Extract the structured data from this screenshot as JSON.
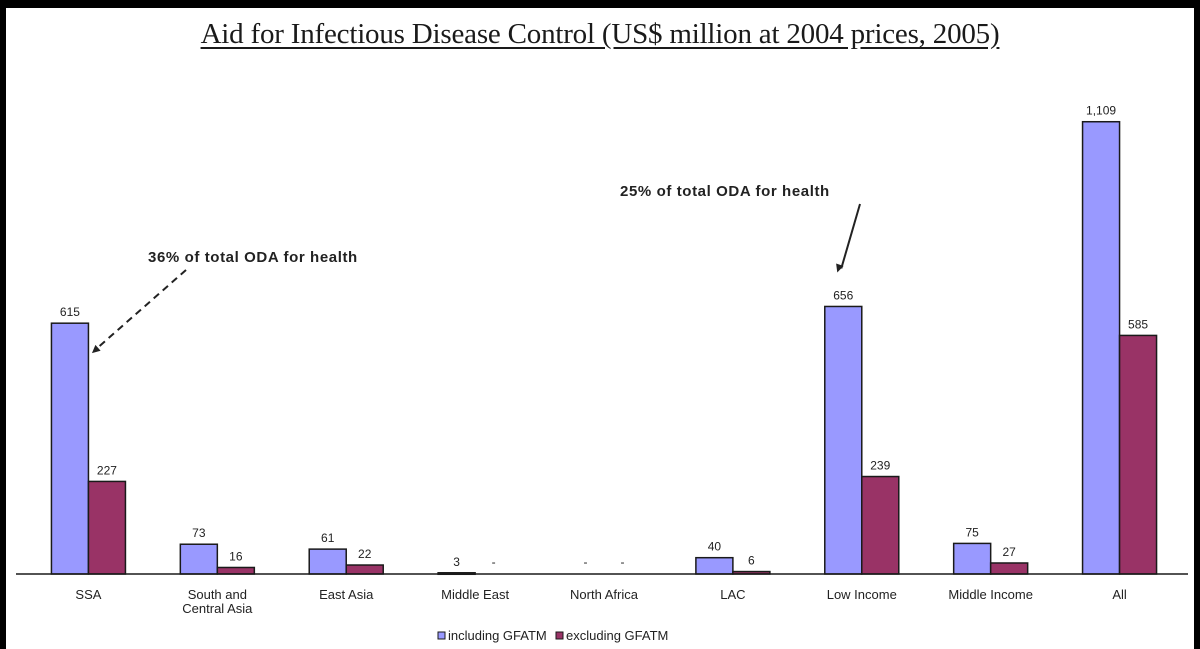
{
  "chart_data": {
    "type": "bar",
    "title": "Aid for Infectious Disease Control (US$ million at 2004 prices, 2005)",
    "categories": [
      "SSA",
      "South and\nCentral Asia",
      "East Asia",
      "Middle East",
      "North Africa",
      "LAC",
      "Low Income",
      "Middle Income",
      "All"
    ],
    "series": [
      {
        "name": "including GFATM",
        "color": "#9999ff",
        "values": [
          615,
          73,
          61,
          3,
          null,
          40,
          656,
          75,
          1109
        ],
        "labels": [
          "615",
          "73",
          "61",
          "3",
          "-",
          "40",
          "656",
          "75",
          "1,109"
        ]
      },
      {
        "name": "excluding GFATM",
        "color": "#993366",
        "values": [
          227,
          16,
          22,
          null,
          null,
          6,
          239,
          27,
          585
        ],
        "labels": [
          "227",
          "16",
          "22",
          "-",
          "-",
          "6",
          "239",
          "27",
          "585"
        ]
      }
    ],
    "ylim": [
      0,
      1150
    ],
    "grid": false,
    "legend_position": "bottom",
    "annotations": [
      {
        "text": "36% of total ODA for health",
        "category": "SSA",
        "series": "including GFATM"
      },
      {
        "text": "25% of total ODA for health",
        "category": "Low Income",
        "series": "including GFATM"
      }
    ]
  }
}
